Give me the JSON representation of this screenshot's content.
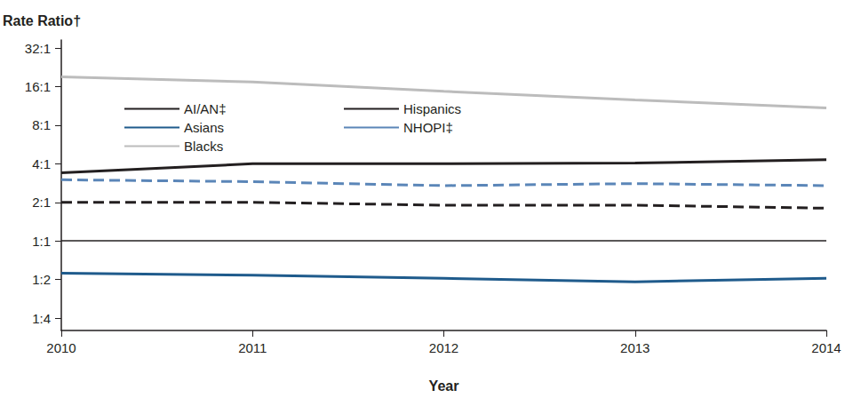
{
  "chart_data": {
    "type": "line",
    "ylabel": "Rate Ratio†",
    "xlabel": "Year",
    "categories": [
      "2010",
      "2011",
      "2012",
      "2013",
      "2014"
    ],
    "log": "y",
    "grid": false,
    "legend": "upper left",
    "marker": "none",
    "ylim": [
      0.2,
      37
    ],
    "yticks": [
      {
        "value": 0.25,
        "label": "1:4"
      },
      {
        "value": 0.5,
        "label": "1:2"
      },
      {
        "value": 1,
        "label": "1:1"
      },
      {
        "value": 2,
        "label": "2:1"
      },
      {
        "value": 4,
        "label": "4:1"
      },
      {
        "value": 8,
        "label": "8:1"
      },
      {
        "value": 16,
        "label": "16:1"
      },
      {
        "value": 32,
        "label": "32:1"
      }
    ],
    "series": [
      {
        "name": "AI/AN‡",
        "color": "#231f20",
        "line_style": "solid",
        "values": [
          3.4,
          4.0,
          4.0,
          4.05,
          4.3
        ]
      },
      {
        "name": "Asians",
        "color": "#1f5b8c",
        "line_style": "solid",
        "values": [
          0.56,
          0.54,
          0.51,
          0.48,
          0.51
        ]
      },
      {
        "name": "Blacks",
        "color": "#bcbcbc",
        "line_style": "solid",
        "values": [
          19.1,
          17.4,
          14.7,
          12.6,
          10.9
        ]
      },
      {
        "name": "Hispanics",
        "color": "#231f20",
        "line_style": "dashed",
        "values": [
          2.0,
          2.0,
          1.9,
          1.9,
          1.8
        ]
      },
      {
        "name": "NHOPI‡",
        "color": "#5b86b8",
        "line_style": "dashed",
        "values": [
          3.0,
          2.9,
          2.7,
          2.8,
          2.7
        ]
      }
    ]
  }
}
